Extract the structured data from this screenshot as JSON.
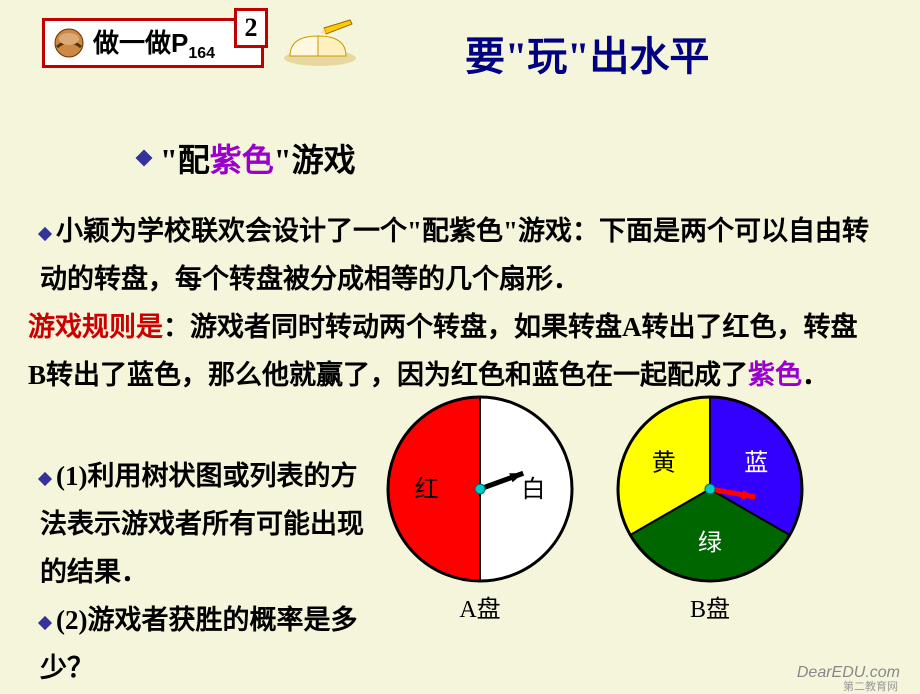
{
  "header": {
    "label_prefix": "做一做P",
    "label_sub": "164",
    "box2": "2"
  },
  "title": "要\"玩\"出水平",
  "subtitle": {
    "pre": "\"配",
    "mid": "紫色",
    "post": "\"游戏"
  },
  "paragraph1": "小颖为学校联欢会设计了一个\"配紫色\"游戏：下面是两个可以自由转动的转盘，每个转盘被分成相等的几个扇形．",
  "rules_label": "游戏规则是",
  "paragraph2_a": "：游戏者同时转动两个转盘，如果转盘A转出了红色，转盘B转出了蓝色，那么他就赢了，因为红色和蓝色在一起配成了",
  "paragraph2_purple": "紫色",
  "paragraph2_b": "．",
  "q1": "(1)利用树状图或列表的方法表示游戏者所有可能出现的结果．",
  "q2": "(2)游戏者获胜的概率是多少？",
  "wheelA": {
    "type": "pie",
    "label": "A盘",
    "sectors": [
      {
        "name": "红",
        "color": "#ff0000",
        "start_deg": 90,
        "end_deg": 270,
        "label_color": "#000000"
      },
      {
        "name": "白",
        "color": "#ffffff",
        "start_deg": 270,
        "end_deg": 450,
        "label_color": "#000000"
      }
    ],
    "outline": "#000000",
    "pointer_color": "#000000",
    "center_dot": "#00cccc",
    "radius": 92
  },
  "wheelB": {
    "type": "pie",
    "label": "B盘",
    "sectors": [
      {
        "name": "黄",
        "color": "#ffff00",
        "start_deg": 90,
        "end_deg": 210,
        "label_color": "#000000"
      },
      {
        "name": "绿",
        "color": "#006600",
        "start_deg": 210,
        "end_deg": 330,
        "label_color": "#ffffff"
      },
      {
        "name": "蓝",
        "color": "#3300ff",
        "start_deg": 330,
        "end_deg": 450,
        "label_color": "#ffffff"
      }
    ],
    "outline": "#000000",
    "pointer_color": "#ff0000",
    "center_dot": "#00cccc",
    "radius": 92
  },
  "watermark": "DearEDU.com",
  "watermark_sub": "第二教育网"
}
